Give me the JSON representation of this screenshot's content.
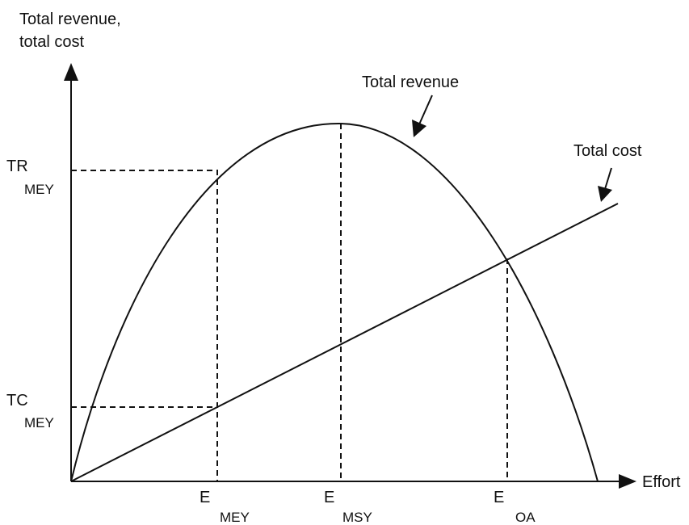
{
  "axes": {
    "y_label": [
      "Total revenue,",
      "total cost"
    ],
    "x_label": "Effort"
  },
  "curves": [
    {
      "label": "Total revenue"
    },
    {
      "label": "Total cost"
    }
  ],
  "markers": {
    "y": [
      {
        "main": "TR",
        "sub": "MEY"
      },
      {
        "main": "TC",
        "sub": "MEY"
      }
    ],
    "x": [
      {
        "main": "E",
        "sub": "MEY"
      },
      {
        "main": "E",
        "sub": "MSY"
      },
      {
        "main": "E",
        "sub": "OA"
      }
    ]
  }
}
